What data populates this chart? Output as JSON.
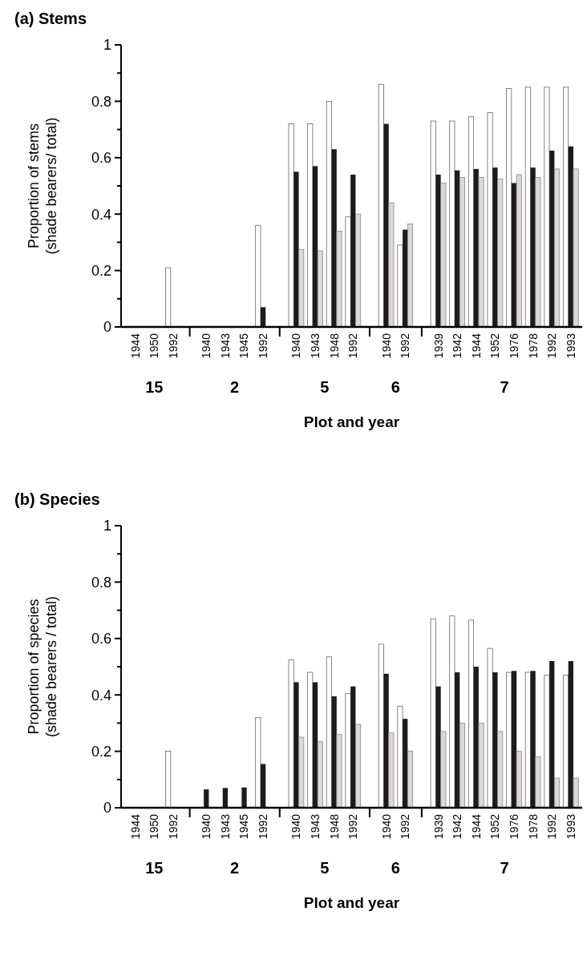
{
  "chart_data": [
    {
      "type": "bar",
      "title": "(a) Stems",
      "xlabel": "Plot and year",
      "ylabel": "Proportion of stems\n(shade bearers/ total)",
      "categories": [
        "1944",
        "1950",
        "1992",
        "1940",
        "1943",
        "1945",
        "1992",
        "1940",
        "1943",
        "1948",
        "1992",
        "1940",
        "1992",
        "1939",
        "1942",
        "1944",
        "1952",
        "1976",
        "1978",
        "1992",
        "1993"
      ],
      "series": [
        {
          "color": "#ffffff",
          "values": [
            0,
            0,
            0.21,
            0,
            0,
            0,
            0.36,
            0.72,
            0.72,
            0.8,
            0.39,
            0.86,
            0.29,
            0.73,
            0.73,
            0.745,
            0.76,
            0.845,
            0.85,
            0.85,
            0.85
          ]
        },
        {
          "color": "#1e1b18",
          "values": [
            0,
            0,
            0,
            0,
            0,
            0,
            0.07,
            0.55,
            0.57,
            0.63,
            0.54,
            0.72,
            0.345,
            0.54,
            0.555,
            0.56,
            0.565,
            0.51,
            0.565,
            0.625,
            0.64
          ]
        },
        {
          "color": "#d9d9d9",
          "values": [
            0,
            0,
            0,
            0,
            0,
            0,
            0,
            0.275,
            0.27,
            0.34,
            0.4,
            0.44,
            0.365,
            0.51,
            0.53,
            0.53,
            0.525,
            0.54,
            0.53,
            0.56,
            0.56
          ]
        }
      ],
      "ylim": [
        0,
        1
      ],
      "yticks": [
        0,
        {
          "value": 0.1,
          "label": null
        },
        0.2,
        {
          "value": 0.3,
          "label": null
        },
        0.4,
        {
          "value": 0.5,
          "label": null
        },
        0.6,
        {
          "value": 0.7,
          "label": null
        },
        0.8,
        {
          "value": 0.9,
          "label": null
        },
        1
      ],
      "annotations": [
        "15",
        "2",
        "5",
        "6",
        "7"
      ]
    },
    {
      "type": "bar",
      "title": "(b) Species",
      "xlabel": "Plot and year",
      "ylabel": "Proportion of species\n(shade bearers / total)",
      "categories": [
        "1944",
        "1950",
        "1992",
        "1940",
        "1943",
        "1945",
        "1992",
        "1940",
        "1943",
        "1948",
        "1992",
        "1940",
        "1992",
        "1939",
        "1942",
        "1944",
        "1952",
        "1976",
        "1978",
        "1992",
        "1993"
      ],
      "series": [
        {
          "color": "#ffffff",
          "values": [
            0,
            0,
            0.2,
            0,
            0,
            0,
            0.32,
            0.525,
            0.48,
            0.535,
            0.405,
            0.58,
            0.36,
            0.67,
            0.68,
            0.665,
            0.565,
            0.48,
            0.48,
            0.47,
            0.47
          ]
        },
        {
          "color": "#1e1b18",
          "values": [
            0,
            0,
            0,
            0.065,
            0.07,
            0.072,
            0.155,
            0.445,
            0.445,
            0.395,
            0.43,
            0.475,
            0.315,
            0.43,
            0.48,
            0.5,
            0.48,
            0.485,
            0.485,
            0.52,
            0.52
          ]
        },
        {
          "color": "#d9d9d9",
          "values": [
            0,
            0,
            0,
            0,
            0,
            0,
            0,
            0.25,
            0.235,
            0.26,
            0.295,
            0.265,
            0.2,
            0.27,
            0.3,
            0.3,
            0.27,
            0.2,
            0.18,
            0.105,
            0.105
          ]
        }
      ],
      "ylim": [
        0,
        1
      ],
      "yticks": [
        0,
        {
          "value": 0.1,
          "label": null
        },
        0.2,
        {
          "value": 0.3,
          "label": null
        },
        0.4,
        {
          "value": 0.5,
          "label": null
        },
        0.6,
        {
          "value": 0.7,
          "label": null
        },
        0.8,
        {
          "value": 0.9,
          "label": null
        },
        1
      ],
      "annotations": [
        "15",
        "2",
        "5",
        "6",
        "7"
      ]
    }
  ]
}
